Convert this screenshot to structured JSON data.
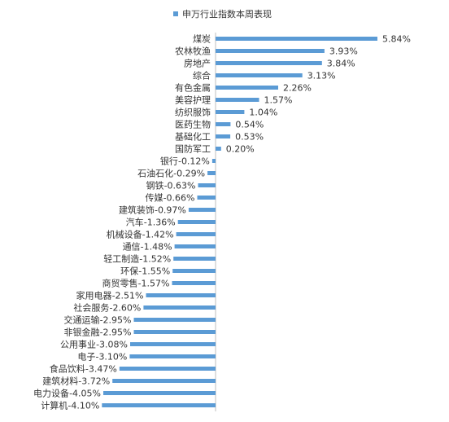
{
  "chart_data": {
    "type": "bar",
    "orientation": "horizontal",
    "legend": "top-center",
    "grid": false,
    "series": [
      {
        "name": "申万行业指数本周表现",
        "color": "#5b9bd5"
      }
    ],
    "categories": [
      "煤炭",
      "农林牧渔",
      "房地产",
      "综合",
      "有色金属",
      "美容护理",
      "纺织服饰",
      "医药生物",
      "基础化工",
      "国防军工",
      "银行",
      "石油石化",
      "钢铁",
      "传媒",
      "建筑装饰",
      "汽车",
      "机械设备",
      "通信",
      "轻工制造",
      "环保",
      "商贸零售",
      "家用电器",
      "社会服务",
      "交通运输",
      "非银金融",
      "公用事业",
      "电子",
      "食品饮料",
      "建筑材料",
      "电力设备",
      "计算机"
    ],
    "values": [
      5.84,
      3.93,
      3.84,
      3.13,
      2.26,
      1.57,
      1.04,
      0.54,
      0.53,
      0.2,
      -0.12,
      -0.29,
      -0.63,
      -0.66,
      -0.97,
      -1.36,
      -1.42,
      -1.48,
      -1.52,
      -1.55,
      -1.57,
      -2.51,
      -2.6,
      -2.95,
      -2.95,
      -3.08,
      -3.1,
      -3.47,
      -3.72,
      -4.05,
      -4.1
    ],
    "value_labels": [
      "5.84%",
      "3.93%",
      "3.84%",
      "3.13%",
      "2.26%",
      "1.57%",
      "1.04%",
      "0.54%",
      "0.53%",
      "0.20%",
      "-0.12%",
      "-0.29%",
      "-0.63%",
      "-0.66%",
      "-0.97%",
      "-1.36%",
      "-1.42%",
      "-1.48%",
      "-1.52%",
      "-1.55%",
      "-1.57%",
      "-2.51%",
      "-2.60%",
      "-2.95%",
      "-2.95%",
      "-3.08%",
      "-3.10%",
      "-3.47%",
      "-3.72%",
      "-4.05%",
      "-4.10%"
    ]
  }
}
